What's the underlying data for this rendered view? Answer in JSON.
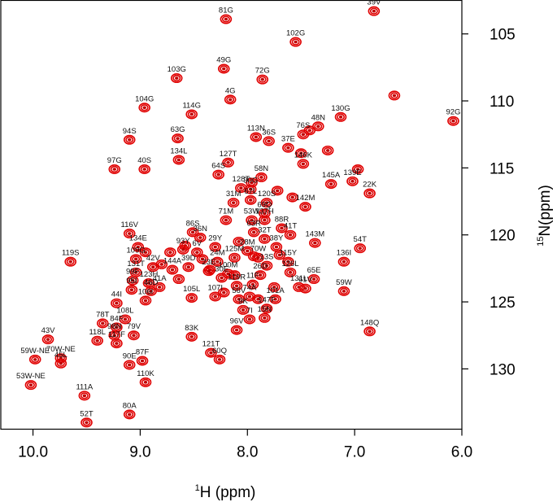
{
  "chart_data": {
    "type": "scatter",
    "title": "",
    "xlabel": {
      "sup": "1",
      "text": "H (ppm)"
    },
    "ylabel": {
      "sup": "15",
      "text": "N(ppm)"
    },
    "xlim": [
      10.3,
      6.0
    ],
    "ylim": [
      134.5,
      102.5
    ],
    "x_ticks": [
      10.0,
      9.0,
      8.0,
      7.0,
      6.0
    ],
    "x_tick_labels": [
      "10.0",
      "9.0",
      "8.0",
      "7.0",
      "6.0"
    ],
    "y_ticks": [
      105,
      110,
      115,
      120,
      125,
      130
    ],
    "y_tick_labels": [
      "105",
      "110",
      "115",
      "120",
      "125",
      "130"
    ],
    "peak_color": "#e00000",
    "labeled_peaks": [
      {
        "label": "81G",
        "x": 8.2,
        "y": 103.9
      },
      {
        "label": "39V",
        "x": 6.82,
        "y": 103.3
      },
      {
        "label": "102G",
        "x": 7.55,
        "y": 105.6
      },
      {
        "label": "49G",
        "x": 8.22,
        "y": 107.6
      },
      {
        "label": "103G",
        "x": 8.66,
        "y": 108.3
      },
      {
        "label": "72G",
        "x": 7.86,
        "y": 108.4
      },
      {
        "label": "4G",
        "x": 8.16,
        "y": 109.9
      },
      {
        "label": "104G",
        "x": 8.96,
        "y": 110.5
      },
      {
        "label": "114G",
        "x": 8.52,
        "y": 111.0
      },
      {
        "label": "130G",
        "x": 7.13,
        "y": 111.2
      },
      {
        "label": "92G",
        "x": 6.08,
        "y": 111.5
      },
      {
        "label": "48N",
        "x": 7.34,
        "y": 111.9
      },
      {
        "label": "76S",
        "x": 7.48,
        "y": 112.5
      },
      {
        "label": "113N",
        "x": 7.92,
        "y": 112.7
      },
      {
        "label": "36S",
        "x": 7.8,
        "y": 113.0
      },
      {
        "label": "63G",
        "x": 8.65,
        "y": 112.8
      },
      {
        "label": "94S",
        "x": 9.1,
        "y": 112.9
      },
      {
        "label": "37E",
        "x": 7.62,
        "y": 113.5
      },
      {
        "label": "134L",
        "x": 8.64,
        "y": 114.4
      },
      {
        "label": "127T",
        "x": 8.18,
        "y": 114.6
      },
      {
        "label": "97G",
        "x": 9.24,
        "y": 115.1
      },
      {
        "label": "40S",
        "x": 8.96,
        "y": 115.1
      },
      {
        "label": "146K",
        "x": 7.48,
        "y": 114.7
      },
      {
        "label": "58N",
        "x": 7.87,
        "y": 115.7
      },
      {
        "label": "64S",
        "x": 8.27,
        "y": 115.5
      },
      {
        "label": "139E",
        "x": 7.02,
        "y": 116.0
      },
      {
        "label": "145A",
        "x": 7.22,
        "y": 116.2
      },
      {
        "label": "128T",
        "x": 8.06,
        "y": 116.5
      },
      {
        "label": "30G",
        "x": 7.97,
        "y": 116.6
      },
      {
        "label": "22K",
        "x": 6.86,
        "y": 116.9
      },
      {
        "label": "120S",
        "x": 7.82,
        "y": 117.6
      },
      {
        "label": "67L",
        "x": 7.97,
        "y": 117.4
      },
      {
        "label": "31M",
        "x": 8.13,
        "y": 117.6
      },
      {
        "label": "142M",
        "x": 7.46,
        "y": 117.9
      },
      {
        "label": "69Q",
        "x": 7.84,
        "y": 118.4
      },
      {
        "label": "53W",
        "x": 7.96,
        "y": 118.9
      },
      {
        "label": "137H",
        "x": 7.84,
        "y": 118.9
      },
      {
        "label": "71M",
        "x": 8.2,
        "y": 118.9
      },
      {
        "label": "88R",
        "x": 7.68,
        "y": 119.5
      },
      {
        "label": "63R",
        "x": 7.94,
        "y": 119.8
      },
      {
        "label": "41T",
        "x": 7.6,
        "y": 120.0
      },
      {
        "label": "86S",
        "x": 8.51,
        "y": 119.8
      },
      {
        "label": "116V",
        "x": 9.1,
        "y": 119.9
      },
      {
        "label": "36N",
        "x": 8.44,
        "y": 120.2
      },
      {
        "label": "32T",
        "x": 7.84,
        "y": 120.3
      },
      {
        "label": "143M",
        "x": 7.37,
        "y": 120.6
      },
      {
        "label": "54T",
        "x": 6.95,
        "y": 121.0
      },
      {
        "label": "134E",
        "x": 9.02,
        "y": 120.9
      },
      {
        "label": "29Y",
        "x": 8.3,
        "y": 120.9
      },
      {
        "label": "93Y",
        "x": 8.6,
        "y": 121.1
      },
      {
        "label": "38Y",
        "x": 7.73,
        "y": 120.9
      },
      {
        "label": "6V",
        "x": 8.47,
        "y": 121.3
      },
      {
        "label": "28M",
        "x": 8.0,
        "y": 121.2
      },
      {
        "label": "125M",
        "x": 8.12,
        "y": 121.7
      },
      {
        "label": "70W",
        "x": 7.9,
        "y": 121.7
      },
      {
        "label": "109G",
        "x": 9.04,
        "y": 121.8
      },
      {
        "label": "115Y",
        "x": 7.62,
        "y": 122.0
      },
      {
        "label": "24M",
        "x": 8.28,
        "y": 122.0
      },
      {
        "label": "119S",
        "x": 9.65,
        "y": 122.0
      },
      {
        "label": "13S",
        "x": 7.82,
        "y": 122.3
      },
      {
        "label": "136I",
        "x": 7.1,
        "y": 122.0
      },
      {
        "label": "42V",
        "x": 8.88,
        "y": 122.4
      },
      {
        "label": "39D",
        "x": 8.55,
        "y": 122.4
      },
      {
        "label": "144A",
        "x": 8.7,
        "y": 122.6
      },
      {
        "label": "131T",
        "x": 9.04,
        "y": 122.8
      },
      {
        "label": "23E",
        "x": 8.36,
        "y": 122.7
      },
      {
        "label": "126L",
        "x": 7.6,
        "y": 122.8
      },
      {
        "label": "100M",
        "x": 8.18,
        "y": 122.9
      },
      {
        "label": "26D",
        "x": 7.88,
        "y": 123.0
      },
      {
        "label": "30E",
        "x": 8.24,
        "y": 123.2
      },
      {
        "label": "65E",
        "x": 7.38,
        "y": 123.3
      },
      {
        "label": "99F",
        "x": 9.07,
        "y": 123.4
      },
      {
        "label": "123H",
        "x": 8.92,
        "y": 123.6
      },
      {
        "label": "11F",
        "x": 7.95,
        "y": 123.7
      },
      {
        "label": "41A",
        "x": 8.82,
        "y": 123.9
      },
      {
        "label": "119R",
        "x": 8.1,
        "y": 123.8
      },
      {
        "label": "131L",
        "x": 7.52,
        "y": 123.9
      },
      {
        "label": "59W",
        "x": 7.1,
        "y": 124.2
      },
      {
        "label": "95I",
        "x": 9.08,
        "y": 124.1
      },
      {
        "label": "46D",
        "x": 8.9,
        "y": 124.2
      },
      {
        "label": "105L",
        "x": 8.52,
        "y": 124.7
      },
      {
        "label": "107I",
        "x": 8.3,
        "y": 124.6
      },
      {
        "label": "74A",
        "x": 7.98,
        "y": 124.6
      },
      {
        "label": "56V",
        "x": 8.08,
        "y": 124.8
      },
      {
        "label": "61V",
        "x": 7.46,
        "y": 124.0
      },
      {
        "label": "106I",
        "x": 8.95,
        "y": 124.9
      },
      {
        "label": "44I",
        "x": 9.22,
        "y": 125.1
      },
      {
        "label": "101A",
        "x": 7.74,
        "y": 124.8
      },
      {
        "label": "147F",
        "x": 7.82,
        "y": 125.5
      },
      {
        "label": "9K",
        "x": 8.04,
        "y": 125.6
      },
      {
        "label": "7I",
        "x": 7.98,
        "y": 126.3
      },
      {
        "label": "15N",
        "x": 7.84,
        "y": 126.2
      },
      {
        "label": "108L",
        "x": 9.14,
        "y": 126.3
      },
      {
        "label": "78T",
        "x": 9.35,
        "y": 126.6
      },
      {
        "label": "84F",
        "x": 9.22,
        "y": 126.9
      },
      {
        "label": "148Q",
        "x": 6.86,
        "y": 127.2
      },
      {
        "label": "83K",
        "x": 8.52,
        "y": 127.6
      },
      {
        "label": "96V",
        "x": 8.1,
        "y": 127.1
      },
      {
        "label": "79V",
        "x": 9.06,
        "y": 127.5
      },
      {
        "label": "98N",
        "x": 9.24,
        "y": 127.5
      },
      {
        "label": "43V",
        "x": 9.86,
        "y": 127.8
      },
      {
        "label": "118L",
        "x": 9.4,
        "y": 127.9
      },
      {
        "label": "117F",
        "x": 9.22,
        "y": 128.1
      },
      {
        "label": "121T",
        "x": 8.34,
        "y": 128.8
      },
      {
        "label": "70W-NE",
        "x": 9.74,
        "y": 129.2
      },
      {
        "label": "60Q",
        "x": 8.26,
        "y": 129.3
      },
      {
        "label": "87F",
        "x": 8.98,
        "y": 129.4
      },
      {
        "label": "45L",
        "x": 9.74,
        "y": 129.6
      },
      {
        "label": "59W-NE",
        "x": 9.98,
        "y": 129.3
      },
      {
        "label": "90E",
        "x": 9.1,
        "y": 129.7
      },
      {
        "label": "110K",
        "x": 8.95,
        "y": 131.0
      },
      {
        "label": "53W-NE",
        "x": 10.02,
        "y": 131.2
      },
      {
        "label": "111A",
        "x": 9.52,
        "y": 132.0
      },
      {
        "label": "80A",
        "x": 9.1,
        "y": 133.4
      },
      {
        "label": "52T",
        "x": 9.5,
        "y": 134.0
      }
    ],
    "unlabeled_peaks": [
      {
        "x": 6.63,
        "y": 109.6
      },
      {
        "x": 6.97,
        "y": 115.1
      },
      {
        "x": 7.25,
        "y": 113.7
      },
      {
        "x": 7.5,
        "y": 113.9
      },
      {
        "x": 7.42,
        "y": 112.2
      },
      {
        "x": 7.96,
        "y": 116.1
      },
      {
        "x": 7.72,
        "y": 116.7
      },
      {
        "x": 7.58,
        "y": 117.2
      },
      {
        "x": 8.08,
        "y": 120.5
      },
      {
        "x": 7.94,
        "y": 121.6
      },
      {
        "x": 7.75,
        "y": 123.9
      },
      {
        "x": 8.72,
        "y": 121.3
      },
      {
        "x": 8.42,
        "y": 121.8
      },
      {
        "x": 8.35,
        "y": 122.6
      },
      {
        "x": 8.12,
        "y": 123.0
      },
      {
        "x": 8.58,
        "y": 120.8
      },
      {
        "x": 8.95,
        "y": 121.3
      },
      {
        "x": 8.8,
        "y": 122.2
      },
      {
        "x": 8.64,
        "y": 123.3
      },
      {
        "x": 7.9,
        "y": 124.8
      },
      {
        "x": 8.22,
        "y": 124.3
      },
      {
        "x": 7.7,
        "y": 121.5
      }
    ]
  }
}
